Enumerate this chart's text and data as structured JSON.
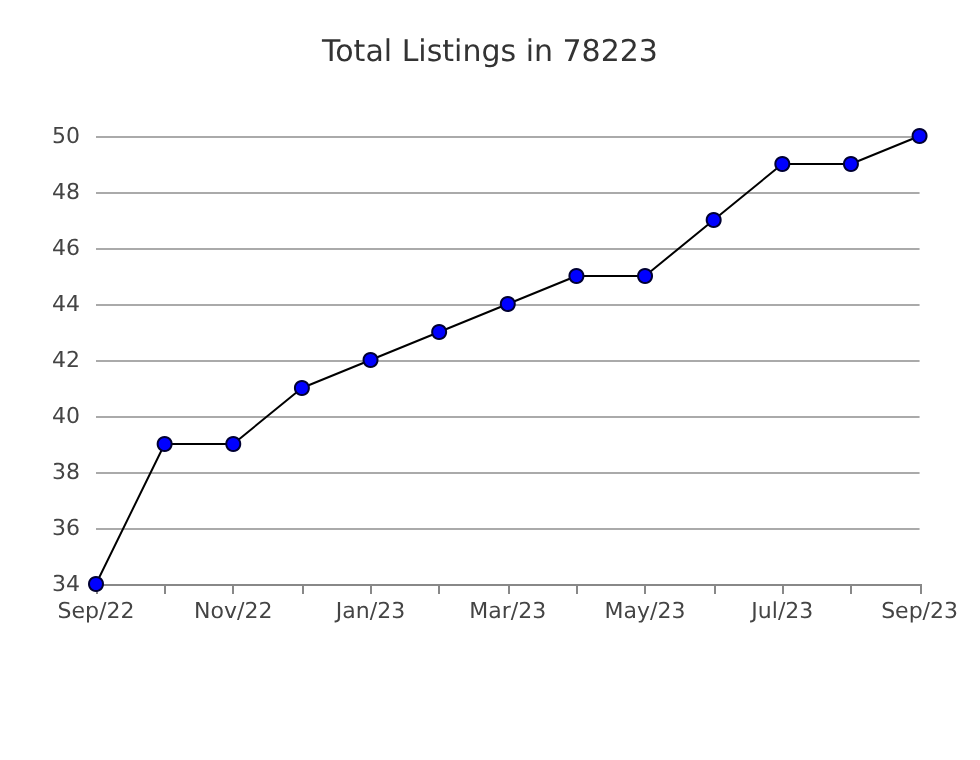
{
  "chart_data": {
    "type": "line",
    "title": "Total Listings in 78223",
    "categories": [
      "Sep/22",
      null,
      "Nov/22",
      null,
      "Jan/23",
      null,
      "Mar/23",
      null,
      "May/23",
      null,
      "Jul/23",
      null,
      "Sep/23"
    ],
    "series": [
      {
        "color": "#0000ff",
        "values": [
          34,
          39,
          39,
          41,
          42,
          43,
          44,
          45,
          45,
          47,
          49,
          49,
          50
        ]
      }
    ],
    "ylim": [
      34,
      50
    ],
    "yticks": [
      34,
      36,
      38,
      40,
      42,
      44,
      46,
      48,
      50
    ],
    "grid": "y",
    "marker": "circle",
    "line_style": "solid"
  }
}
